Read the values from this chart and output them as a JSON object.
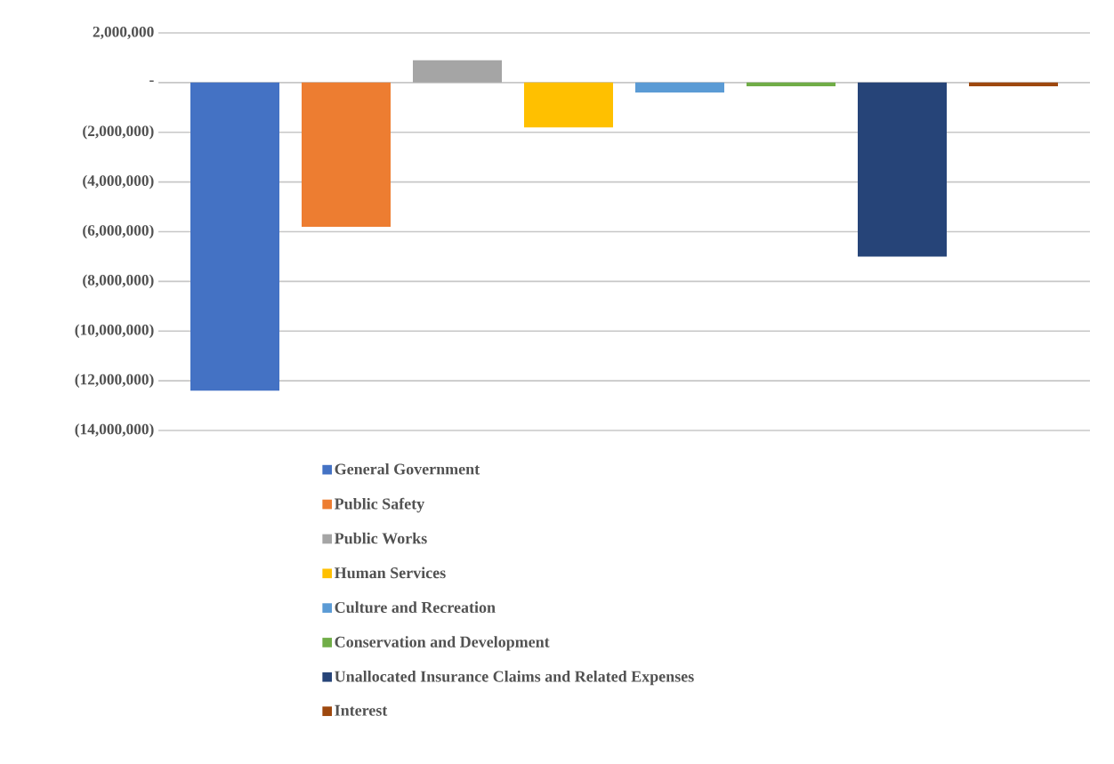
{
  "chart_data": {
    "type": "bar",
    "categories": [
      null
    ],
    "series": [
      {
        "name": "General Government",
        "color": "#4472c4",
        "values": [
          -12400000
        ]
      },
      {
        "name": "Public Safety",
        "color": "#ed7d31",
        "values": [
          -5800000
        ]
      },
      {
        "name": "Public Works",
        "color": "#a5a5a5",
        "values": [
          900000
        ]
      },
      {
        "name": "Human Services",
        "color": "#ffc000",
        "values": [
          -1800000
        ]
      },
      {
        "name": "Culture and Recreation",
        "color": "#5b9bd5",
        "values": [
          -400000
        ]
      },
      {
        "name": "Conservation and Development",
        "color": "#70ad47",
        "values": [
          -150000
        ]
      },
      {
        "name": "Unallocated Insurance Claims and Related Expenses",
        "color": "#264478",
        "values": [
          -7000000
        ]
      },
      {
        "name": "Interest",
        "color": "#9e480e",
        "values": [
          -150000
        ]
      }
    ],
    "ylim": [
      -14000000,
      2000000
    ],
    "yticks": [
      {
        "value": 2000000,
        "label": "2,000,000"
      },
      {
        "value": 0,
        "label": "-"
      },
      {
        "value": -2000000,
        "label": "(2,000,000)"
      },
      {
        "value": -4000000,
        "label": "(4,000,000)"
      },
      {
        "value": -6000000,
        "label": "(6,000,000)"
      },
      {
        "value": -8000000,
        "label": "(8,000,000)"
      },
      {
        "value": -10000000,
        "label": "(10,000,000)"
      },
      {
        "value": -12000000,
        "label": "(12,000,000)"
      },
      {
        "value": -14000000,
        "label": "(14,000,000)"
      }
    ],
    "grid": "y",
    "legend": "bottom"
  }
}
